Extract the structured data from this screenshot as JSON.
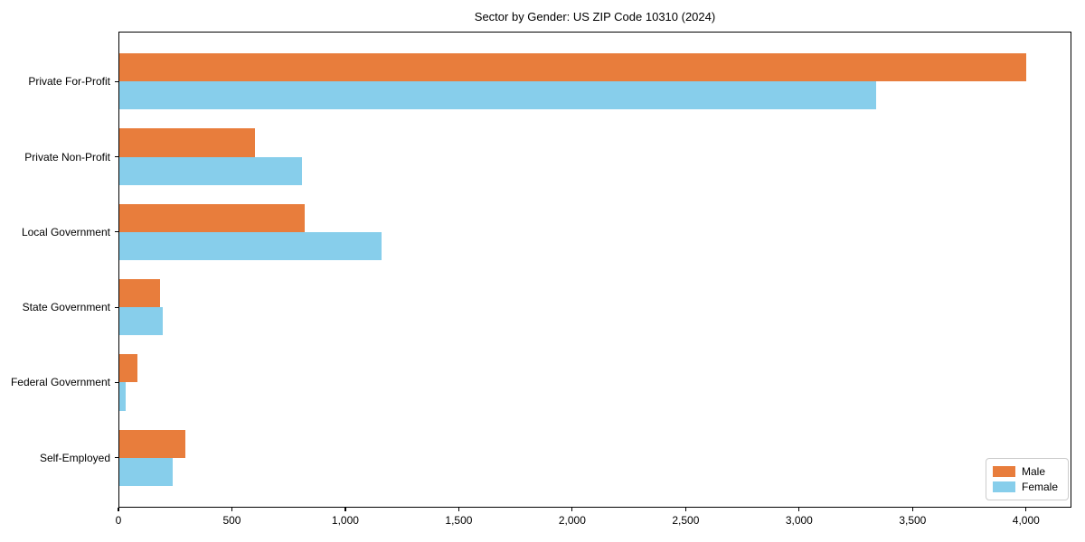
{
  "chart_data": {
    "type": "bar",
    "orientation": "horizontal",
    "title": "Sector by Gender: US ZIP Code 10310 (2024)",
    "categories": [
      "Private For-Profit",
      "Private Non-Profit",
      "Local Government",
      "State Government",
      "Federal Government",
      "Self-Employed"
    ],
    "series": [
      {
        "name": "Male",
        "color": "#E87D3C",
        "values": [
          4000,
          600,
          820,
          185,
          85,
          295
        ]
      },
      {
        "name": "Female",
        "color": "#87CEEB",
        "values": [
          3340,
          810,
          1160,
          195,
          30,
          240
        ]
      }
    ],
    "xlabel": "",
    "ylabel": "",
    "xlim": [
      0,
      4200
    ],
    "x_ticks": [
      0,
      500,
      1000,
      1500,
      2000,
      2500,
      3000,
      3500,
      4000
    ],
    "x_tick_labels": [
      "0",
      "500",
      "1,000",
      "1,500",
      "2,000",
      "2,500",
      "3,000",
      "3,500",
      "4,000"
    ],
    "grid": false,
    "legend_position": "lower right",
    "background_color": "#ffffff",
    "spine_color": "#000000"
  }
}
